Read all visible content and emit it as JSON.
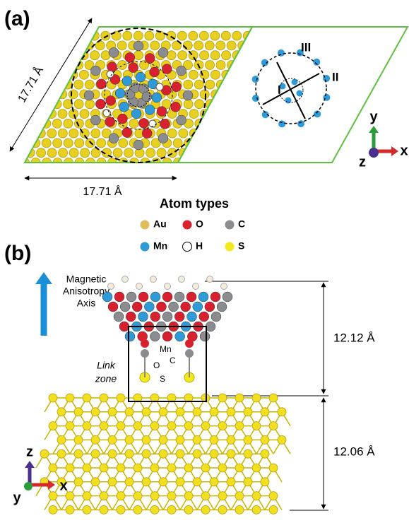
{
  "panel_a": {
    "label": "(a)",
    "side_length_left": "17.71 Å",
    "side_length_bottom": "17.71 Å",
    "sites": [
      "I",
      "II",
      "III"
    ],
    "axes": {
      "y": "y",
      "x": "x",
      "z": "z"
    }
  },
  "legend": {
    "title": "Atom types",
    "items": [
      {
        "label": "Au",
        "color": "#e0bd5c"
      },
      {
        "label": "O",
        "color": "#d8202e"
      },
      {
        "label": "C",
        "color": "#8a8c90"
      },
      {
        "label": "Mn",
        "color": "#2f9ad8"
      },
      {
        "label": "H",
        "color": "#ffffff"
      },
      {
        "label": "S",
        "color": "#f2ea1c"
      }
    ]
  },
  "panel_b": {
    "label": "(b)",
    "axis_caption": [
      "Magnetic",
      "Anisotropy",
      "Axis"
    ],
    "molecule_height": "12.12 Å",
    "slab_height": "12.06 Å",
    "link_zone": [
      "Link",
      "zone"
    ],
    "atom_labels": {
      "mn": "Mn",
      "o": "O",
      "c": "C",
      "s": "S"
    },
    "axes": {
      "z": "z",
      "y": "y",
      "x": "x"
    }
  }
}
